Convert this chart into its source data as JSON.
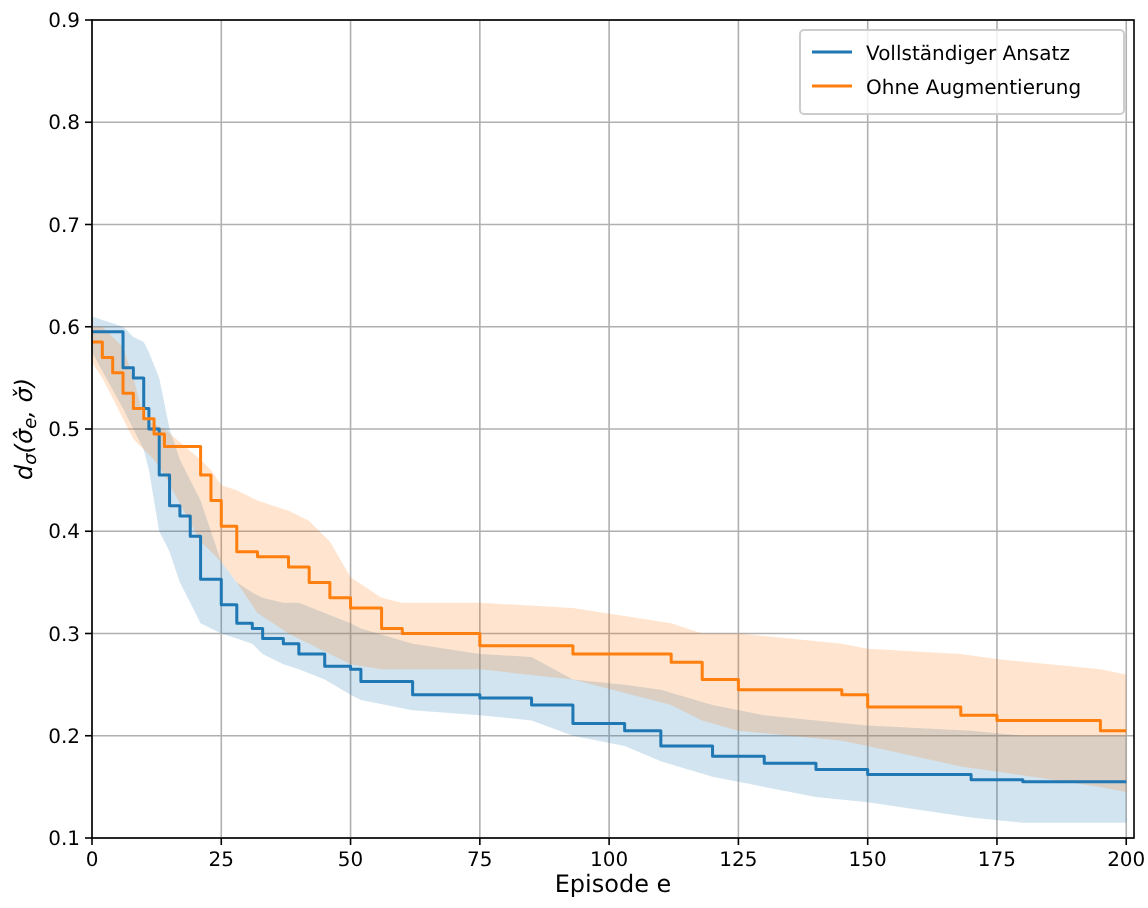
{
  "chart_data": {
    "type": "step",
    "xlabel": "Episode e",
    "ylabel": "d$_{σ}$(σ̂$_{e}$, σ̌)",
    "xlim": [
      0,
      201.5
    ],
    "ylim": [
      0.1,
      0.9
    ],
    "xticks": [
      0,
      25,
      50,
      75,
      100,
      125,
      150,
      175,
      200
    ],
    "yticks": [
      0.1,
      0.2,
      0.3,
      0.4,
      0.5,
      0.6,
      0.7,
      0.8,
      0.9
    ],
    "grid": true,
    "legend": "top right",
    "series": [
      {
        "name": "Vollständiger Ansatz",
        "color": "#1f77b4",
        "x": [
          0,
          6,
          8,
          10,
          11,
          13,
          15,
          17,
          19,
          21,
          25,
          28,
          31,
          33,
          37,
          40,
          45,
          50,
          52,
          62,
          75,
          85,
          93,
          103,
          110,
          120,
          130,
          140,
          150,
          170,
          180,
          200
        ],
        "values": [
          0.595,
          0.56,
          0.55,
          0.52,
          0.5,
          0.455,
          0.425,
          0.415,
          0.395,
          0.353,
          0.328,
          0.31,
          0.305,
          0.295,
          0.29,
          0.28,
          0.268,
          0.265,
          0.253,
          0.24,
          0.237,
          0.23,
          0.212,
          0.205,
          0.19,
          0.18,
          0.173,
          0.167,
          0.162,
          0.157,
          0.155,
          0.155
        ],
        "upper": [
          0.61,
          0.6,
          0.59,
          0.585,
          0.575,
          0.55,
          0.5,
          0.47,
          0.45,
          0.43,
          0.37,
          0.35,
          0.34,
          0.335,
          0.33,
          0.33,
          0.32,
          0.31,
          0.305,
          0.29,
          0.28,
          0.277,
          0.255,
          0.25,
          0.245,
          0.23,
          0.22,
          0.215,
          0.21,
          0.205,
          0.2,
          0.2
        ],
        "lower": [
          0.575,
          0.52,
          0.5,
          0.48,
          0.46,
          0.4,
          0.38,
          0.35,
          0.33,
          0.31,
          0.3,
          0.295,
          0.29,
          0.28,
          0.27,
          0.265,
          0.255,
          0.24,
          0.235,
          0.225,
          0.22,
          0.215,
          0.2,
          0.19,
          0.175,
          0.16,
          0.15,
          0.14,
          0.135,
          0.12,
          0.115,
          0.115
        ]
      },
      {
        "name": "Ohne Augmentierung",
        "color": "#ff7f0e",
        "x": [
          0,
          2,
          4,
          6,
          8,
          10,
          12,
          14,
          21,
          23,
          25,
          28,
          32,
          38,
          42,
          46,
          50,
          56,
          60,
          75,
          93,
          112,
          118,
          125,
          145,
          150,
          168,
          175,
          195,
          200
        ],
        "values": [
          0.585,
          0.57,
          0.555,
          0.535,
          0.52,
          0.51,
          0.495,
          0.483,
          0.455,
          0.43,
          0.405,
          0.38,
          0.375,
          0.365,
          0.35,
          0.335,
          0.325,
          0.305,
          0.3,
          0.288,
          0.28,
          0.272,
          0.255,
          0.245,
          0.24,
          0.228,
          0.22,
          0.215,
          0.205,
          0.205
        ],
        "upper": [
          0.6,
          0.6,
          0.59,
          0.58,
          0.55,
          0.51,
          0.505,
          0.5,
          0.47,
          0.46,
          0.445,
          0.44,
          0.43,
          0.42,
          0.41,
          0.39,
          0.355,
          0.335,
          0.33,
          0.33,
          0.325,
          0.31,
          0.3,
          0.3,
          0.29,
          0.285,
          0.28,
          0.275,
          0.265,
          0.26
        ],
        "lower": [
          0.565,
          0.55,
          0.53,
          0.51,
          0.49,
          0.48,
          0.47,
          0.455,
          0.39,
          0.38,
          0.37,
          0.35,
          0.32,
          0.3,
          0.29,
          0.28,
          0.27,
          0.265,
          0.265,
          0.265,
          0.255,
          0.23,
          0.215,
          0.205,
          0.195,
          0.19,
          0.17,
          0.165,
          0.15,
          0.145
        ]
      }
    ]
  }
}
